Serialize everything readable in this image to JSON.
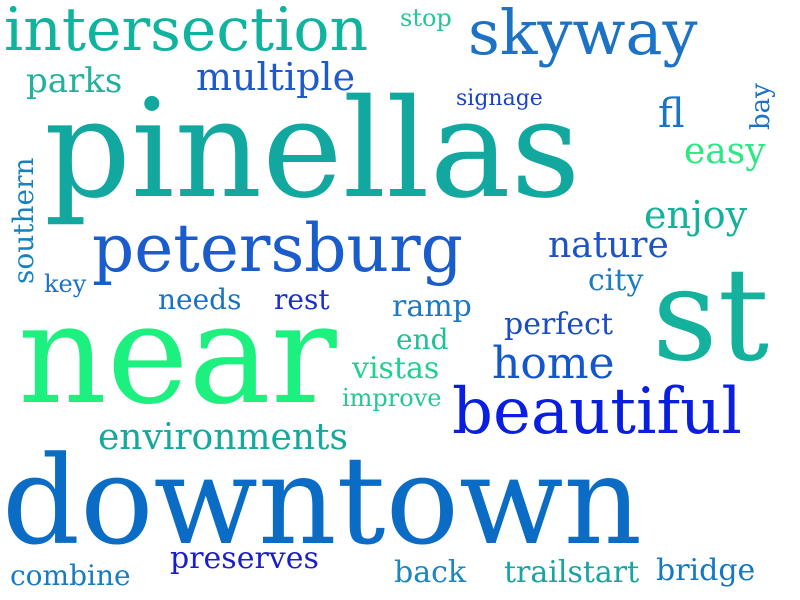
{
  "words": {
    "downtown": {
      "text": "downtown",
      "color": "#0a6cc4"
    },
    "pinellas": {
      "text": "pinellas",
      "color": "#12a8a0"
    },
    "near": {
      "text": "near",
      "color": "#1cf07e"
    },
    "st": {
      "text": "st",
      "color": "#14b29c"
    },
    "petersburg": {
      "text": "petersburg",
      "color": "#1a5ccc"
    },
    "beautiful": {
      "text": "beautiful",
      "color": "#0a1ee0"
    },
    "intersection": {
      "text": "intersection",
      "color": "#10b49e"
    },
    "skyway": {
      "text": "skyway",
      "color": "#1c72c4"
    },
    "environments": {
      "text": "environments",
      "color": "#16a89c"
    },
    "home": {
      "text": "home",
      "color": "#1258cc"
    },
    "multiple": {
      "text": "multiple",
      "color": "#1e5ac8"
    },
    "enjoy": {
      "text": "enjoy",
      "color": "#14b29a"
    },
    "nature": {
      "text": "nature",
      "color": "#1c54c6"
    },
    "easy": {
      "text": "easy",
      "color": "#2ae882"
    },
    "fl": {
      "text": "fl",
      "color": "#1a76c4"
    },
    "parks": {
      "text": "parks",
      "color": "#20b29c"
    },
    "southern": {
      "text": "southern",
      "color": "#1682be"
    },
    "preserves": {
      "text": "preserves",
      "color": "#1a1ecc"
    },
    "trailstart": {
      "text": "trailstart",
      "color": "#18a4a0"
    },
    "bridge": {
      "text": "bridge",
      "color": "#1478c2"
    },
    "combine": {
      "text": "combine",
      "color": "#1a7cc0"
    },
    "back": {
      "text": "back",
      "color": "#1c86be"
    },
    "perfect": {
      "text": "perfect",
      "color": "#1a4cc8"
    },
    "vistas": {
      "text": "vistas",
      "color": "#20d090"
    },
    "improve": {
      "text": "improve",
      "color": "#24c894"
    },
    "end": {
      "text": "end",
      "color": "#20c094"
    },
    "ramp": {
      "text": "ramp",
      "color": "#1c7ac4"
    },
    "city": {
      "text": "city",
      "color": "#1a7cc2"
    },
    "needs": {
      "text": "needs",
      "color": "#1a72c4"
    },
    "rest": {
      "text": "rest",
      "color": "#1a2ed0"
    },
    "key": {
      "text": "key",
      "color": "#1c72c4"
    },
    "stop": {
      "text": "stop",
      "color": "#22c898"
    },
    "signage": {
      "text": "signage",
      "color": "#1a44c8"
    },
    "bay": {
      "text": "bay",
      "color": "#1a72c2"
    }
  }
}
